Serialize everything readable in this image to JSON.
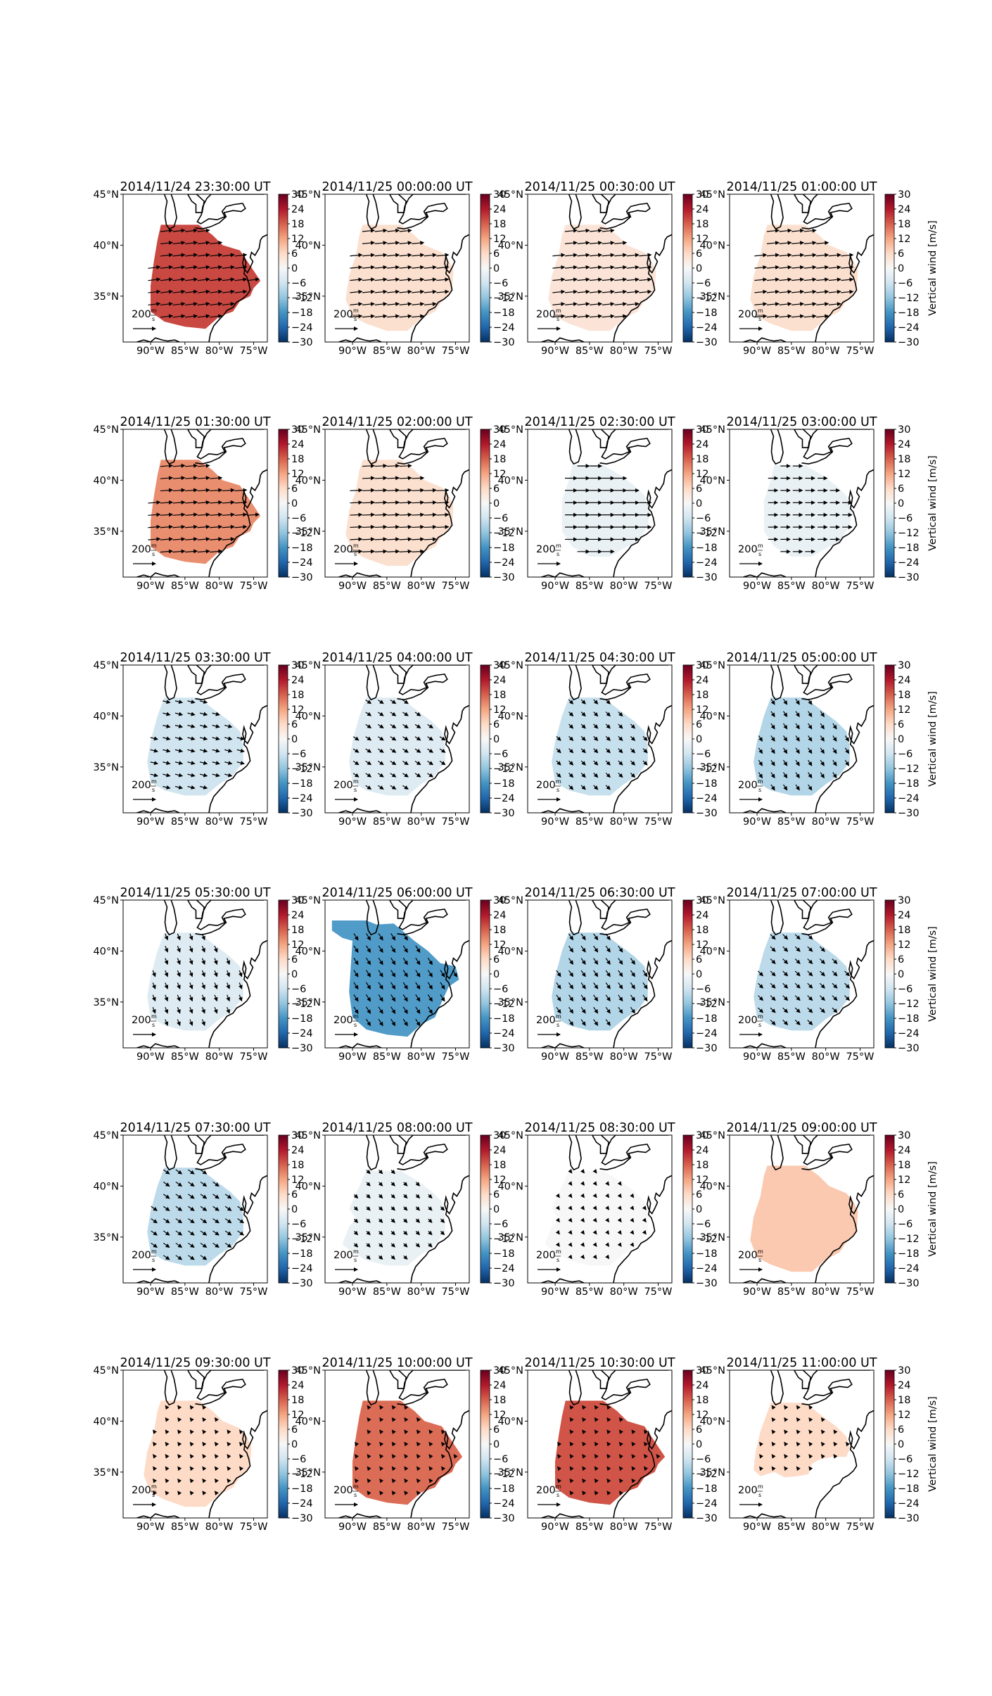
{
  "colors": {
    "colormap": "RdBu_r",
    "land_outline": "#000000",
    "arrow": "#000000",
    "background": "#ffffff"
  },
  "chart_data": {
    "type": "heatmap",
    "map_extent": {
      "lon": [
        -94,
        -73
      ],
      "lat": [
        30.5,
        45
      ]
    },
    "xticks": [
      "90°W",
      "85°W",
      "80°W",
      "75°W"
    ],
    "yticks": [
      "45°N",
      "40°N",
      "35°N"
    ],
    "colorbar": {
      "ticks": [
        "30",
        "24",
        "18",
        "12",
        "6",
        "0",
        "−6",
        "−12",
        "−18",
        "−24",
        "−30"
      ],
      "range": [
        -30,
        30
      ],
      "label": "Vertical wind [m/s]"
    },
    "quiver_key": {
      "value": "200",
      "unit_num": "m",
      "unit_den": "s"
    },
    "panels": [
      {
        "title": "2014/11/24 23:30:00 UT",
        "value": 20,
        "region": 1,
        "vectors": [
          1.0,
          0.12
        ]
      },
      {
        "title": "2014/11/25 00:00:00 UT",
        "value": 5,
        "region": 2,
        "vectors": [
          1.0,
          0.1
        ]
      },
      {
        "title": "2014/11/25 00:30:00 UT",
        "value": 4,
        "region": 2,
        "vectors": [
          1.0,
          0.1
        ]
      },
      {
        "title": "2014/11/25 01:00:00 UT",
        "value": 5,
        "region": 2,
        "vectors": [
          1.0,
          0.1
        ]
      },
      {
        "title": "2014/11/25 01:30:00 UT",
        "value": 14,
        "region": 1,
        "vectors": [
          1.0,
          0.08
        ]
      },
      {
        "title": "2014/11/25 02:00:00 UT",
        "value": 5,
        "region": 2,
        "vectors": [
          1.0,
          0.05
        ]
      },
      {
        "title": "2014/11/25 02:30:00 UT",
        "value": -2,
        "region": 3,
        "vectors": [
          1.0,
          0.0
        ]
      },
      {
        "title": "2014/11/25 03:00:00 UT",
        "value": -2,
        "region": 3,
        "vectors": [
          0.8,
          0.0
        ]
      },
      {
        "title": "2014/11/25 03:30:00 UT",
        "value": -6,
        "region": 4,
        "vectors": [
          0.6,
          -0.15
        ]
      },
      {
        "title": "2014/11/25 04:00:00 UT",
        "value": -4,
        "region": 4,
        "vectors": [
          0.45,
          -0.3
        ]
      },
      {
        "title": "2014/11/25 04:30:00 UT",
        "value": -7,
        "region": 4,
        "vectors": [
          0.35,
          -0.35
        ]
      },
      {
        "title": "2014/11/25 05:00:00 UT",
        "value": -9,
        "region": 4,
        "vectors": [
          0.3,
          -0.45
        ]
      },
      {
        "title": "2014/11/25 05:30:00 UT",
        "value": -4,
        "region": 4,
        "vectors": [
          0.2,
          -0.5
        ]
      },
      {
        "title": "2014/11/25 06:00:00 UT",
        "value": -17,
        "region": 5,
        "vectors": [
          0.35,
          -0.55
        ]
      },
      {
        "title": "2014/11/25 06:30:00 UT",
        "value": -9,
        "region": 4,
        "vectors": [
          0.35,
          -0.5
        ]
      },
      {
        "title": "2014/11/25 07:00:00 UT",
        "value": -8,
        "region": 4,
        "vectors": [
          0.4,
          -0.4
        ]
      },
      {
        "title": "2014/11/25 07:30:00 UT",
        "value": -8,
        "region": 4,
        "vectors": [
          0.5,
          -0.35
        ]
      },
      {
        "title": "2014/11/25 08:00:00 UT",
        "value": -2,
        "region": 6,
        "vectors": [
          0.3,
          -0.3
        ]
      },
      {
        "title": "2014/11/25 08:30:00 UT",
        "value": 0,
        "region": 6,
        "vectors": [
          0.15,
          -0.2
        ]
      },
      {
        "title": "2014/11/25 09:00:00 UT",
        "value": 8,
        "region": 2,
        "vectors": [
          0.0,
          0.0
        ]
      },
      {
        "title": "2014/11/25 09:30:00 UT",
        "value": 6,
        "region": 2,
        "vectors": [
          -0.15,
          0.2
        ]
      },
      {
        "title": "2014/11/25 10:00:00 UT",
        "value": 17,
        "region": 1,
        "vectors": [
          -0.15,
          0.2
        ]
      },
      {
        "title": "2014/11/25 10:30:00 UT",
        "value": 19,
        "region": 1,
        "vectors": [
          -0.15,
          0.2
        ]
      },
      {
        "title": "2014/11/25 11:00:00 UT",
        "value": 6,
        "region": 7,
        "vectors": [
          -0.15,
          0.2
        ]
      }
    ]
  }
}
